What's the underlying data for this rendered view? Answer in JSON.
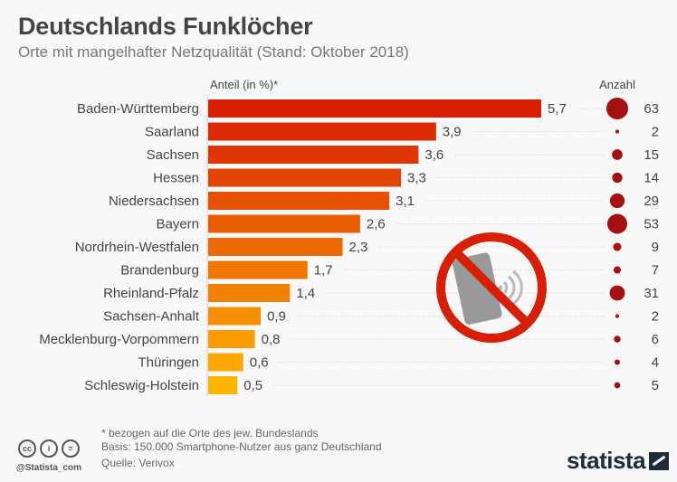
{
  "chart_data": {
    "type": "bar",
    "title": "Deutschlands Funklöcher",
    "subtitle": "Orte mit mangelhafter Netzqualität (Stand: Oktober 2018)",
    "xlabel": "Anteil (in %)*",
    "secondary_label": "Anzahl",
    "xlim": [
      0,
      5.7
    ],
    "categories": [
      "Baden-Württemberg",
      "Saarland",
      "Sachsen",
      "Hessen",
      "Niedersachsen",
      "Bayern",
      "Nordrhein-Westfalen",
      "Brandenburg",
      "Rheinland-Pfalz",
      "Sachsen-Anhalt",
      "Mecklenburg-Vorpommern",
      "Thüringen",
      "Schleswig-Holstein"
    ],
    "series": [
      {
        "name": "Anteil (in %)",
        "values": [
          5.7,
          3.9,
          3.6,
          3.3,
          3.1,
          2.6,
          2.3,
          1.7,
          1.4,
          0.9,
          0.8,
          0.6,
          0.5
        ],
        "labels": [
          "5,7",
          "3,9",
          "3,6",
          "3,3",
          "3,1",
          "2,6",
          "2,3",
          "1,7",
          "1,4",
          "0,9",
          "0,8",
          "0,6",
          "0,5"
        ]
      },
      {
        "name": "Anzahl",
        "values": [
          63,
          2,
          15,
          14,
          29,
          53,
          9,
          7,
          31,
          2,
          6,
          4,
          5
        ]
      }
    ],
    "colors": {
      "bar_start": "#d81e05",
      "bar_end": "#ffb400",
      "bubble": "#a50f0f",
      "prohibition": "#d81e05"
    }
  },
  "footer": {
    "note": "* bezogen auf die Orte des jew. Bundeslands",
    "basis": "Basis: 150.000 Smartphone-Nutzer aus ganz Deutschland",
    "source": "Quelle: Verivox",
    "handle": "@Statista_com",
    "cc_icons": [
      "cc",
      "by",
      "nd"
    ],
    "logo": "statista"
  },
  "illustration": "no-mobile-signal-icon"
}
